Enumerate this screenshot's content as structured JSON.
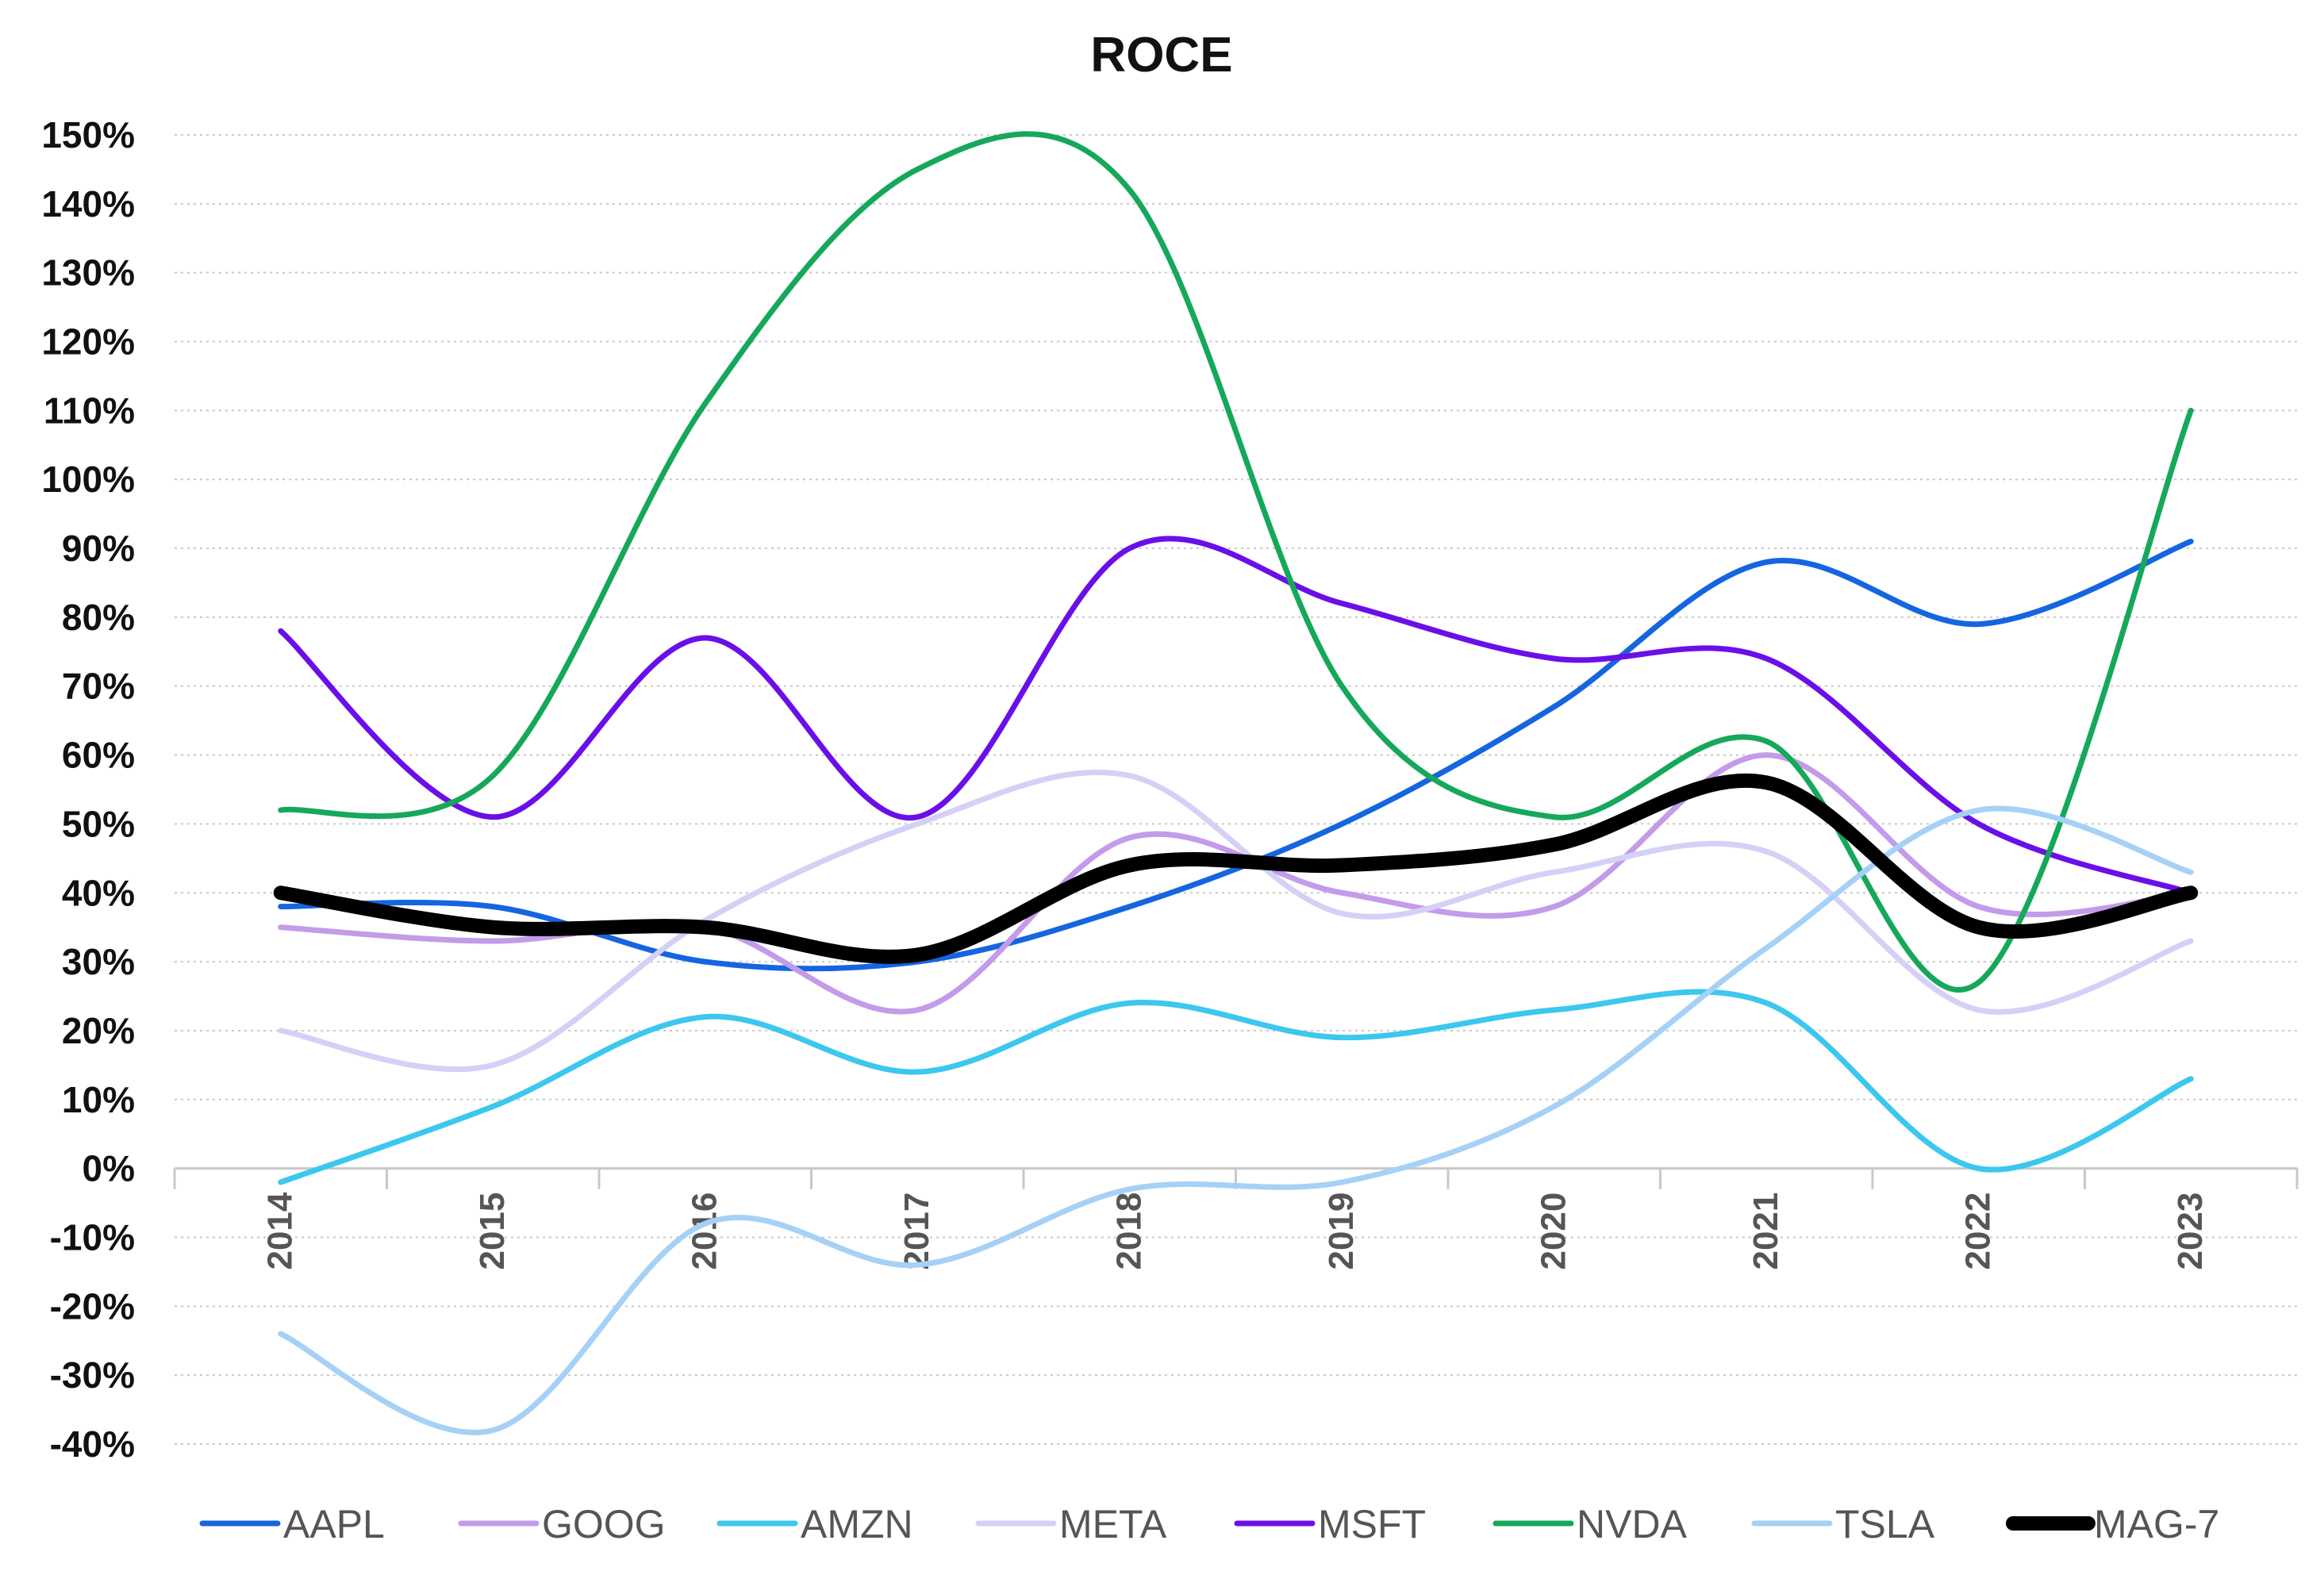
{
  "chart_data": {
    "type": "line",
    "title": "ROCE",
    "xlabel": "",
    "ylabel": "",
    "x": [
      "2014",
      "2015",
      "2016",
      "2017",
      "2018",
      "2019",
      "2020",
      "2021",
      "2022",
      "2023"
    ],
    "ylim": [
      -40,
      150
    ],
    "y_ticks": [
      "150%",
      "140%",
      "130%",
      "120%",
      "110%",
      "100%",
      "90%",
      "80%",
      "70%",
      "60%",
      "50%",
      "40%",
      "30%",
      "20%",
      "10%",
      "0%",
      "-10%",
      "-20%",
      "-30%",
      "-40%"
    ],
    "y_tick_values": [
      150,
      140,
      130,
      120,
      110,
      100,
      90,
      80,
      70,
      60,
      50,
      40,
      30,
      20,
      10,
      0,
      -10,
      -20,
      -30,
      -40
    ],
    "grid": true,
    "grid_style": "dotted horizontal",
    "smooth": true,
    "legend_position": "bottom",
    "series": [
      {
        "name": "AAPL",
        "color": "#1565e0",
        "width": "normal",
        "values": [
          38,
          38,
          30,
          30,
          38,
          50,
          67,
          88,
          79,
          91
        ]
      },
      {
        "name": "GOOG",
        "color": "#c39bea",
        "width": "normal",
        "values": [
          35,
          33,
          35,
          23,
          48,
          40,
          38,
          60,
          38,
          40
        ]
      },
      {
        "name": "AMZN",
        "color": "#3cc7ee",
        "width": "normal",
        "values": [
          -2,
          9,
          22,
          14,
          24,
          19,
          23,
          24,
          0,
          13
        ]
      },
      {
        "name": "META",
        "color": "#d4d0f7",
        "width": "normal",
        "values": [
          20,
          15,
          36,
          50,
          57,
          37,
          43,
          46,
          23,
          33
        ]
      },
      {
        "name": "MSFT",
        "color": "#6a0fe8",
        "width": "normal",
        "values": [
          78,
          51,
          77,
          51,
          90,
          82,
          74,
          74,
          50,
          40
        ]
      },
      {
        "name": "NVDA",
        "color": "#16a85a",
        "width": "normal",
        "values": [
          52,
          57,
          111,
          145,
          142,
          70,
          51,
          62,
          27,
          110
        ]
      },
      {
        "name": "TSLA",
        "color": "#a6d1f7",
        "width": "normal",
        "values": [
          -24,
          -38,
          -8,
          -14,
          -3,
          -2,
          9,
          32,
          52,
          43
        ]
      },
      {
        "name": "MAG-7",
        "color": "#000000",
        "width": "bold",
        "values": [
          40,
          35,
          35,
          31,
          44,
          44,
          47,
          56,
          35,
          40
        ]
      }
    ]
  }
}
